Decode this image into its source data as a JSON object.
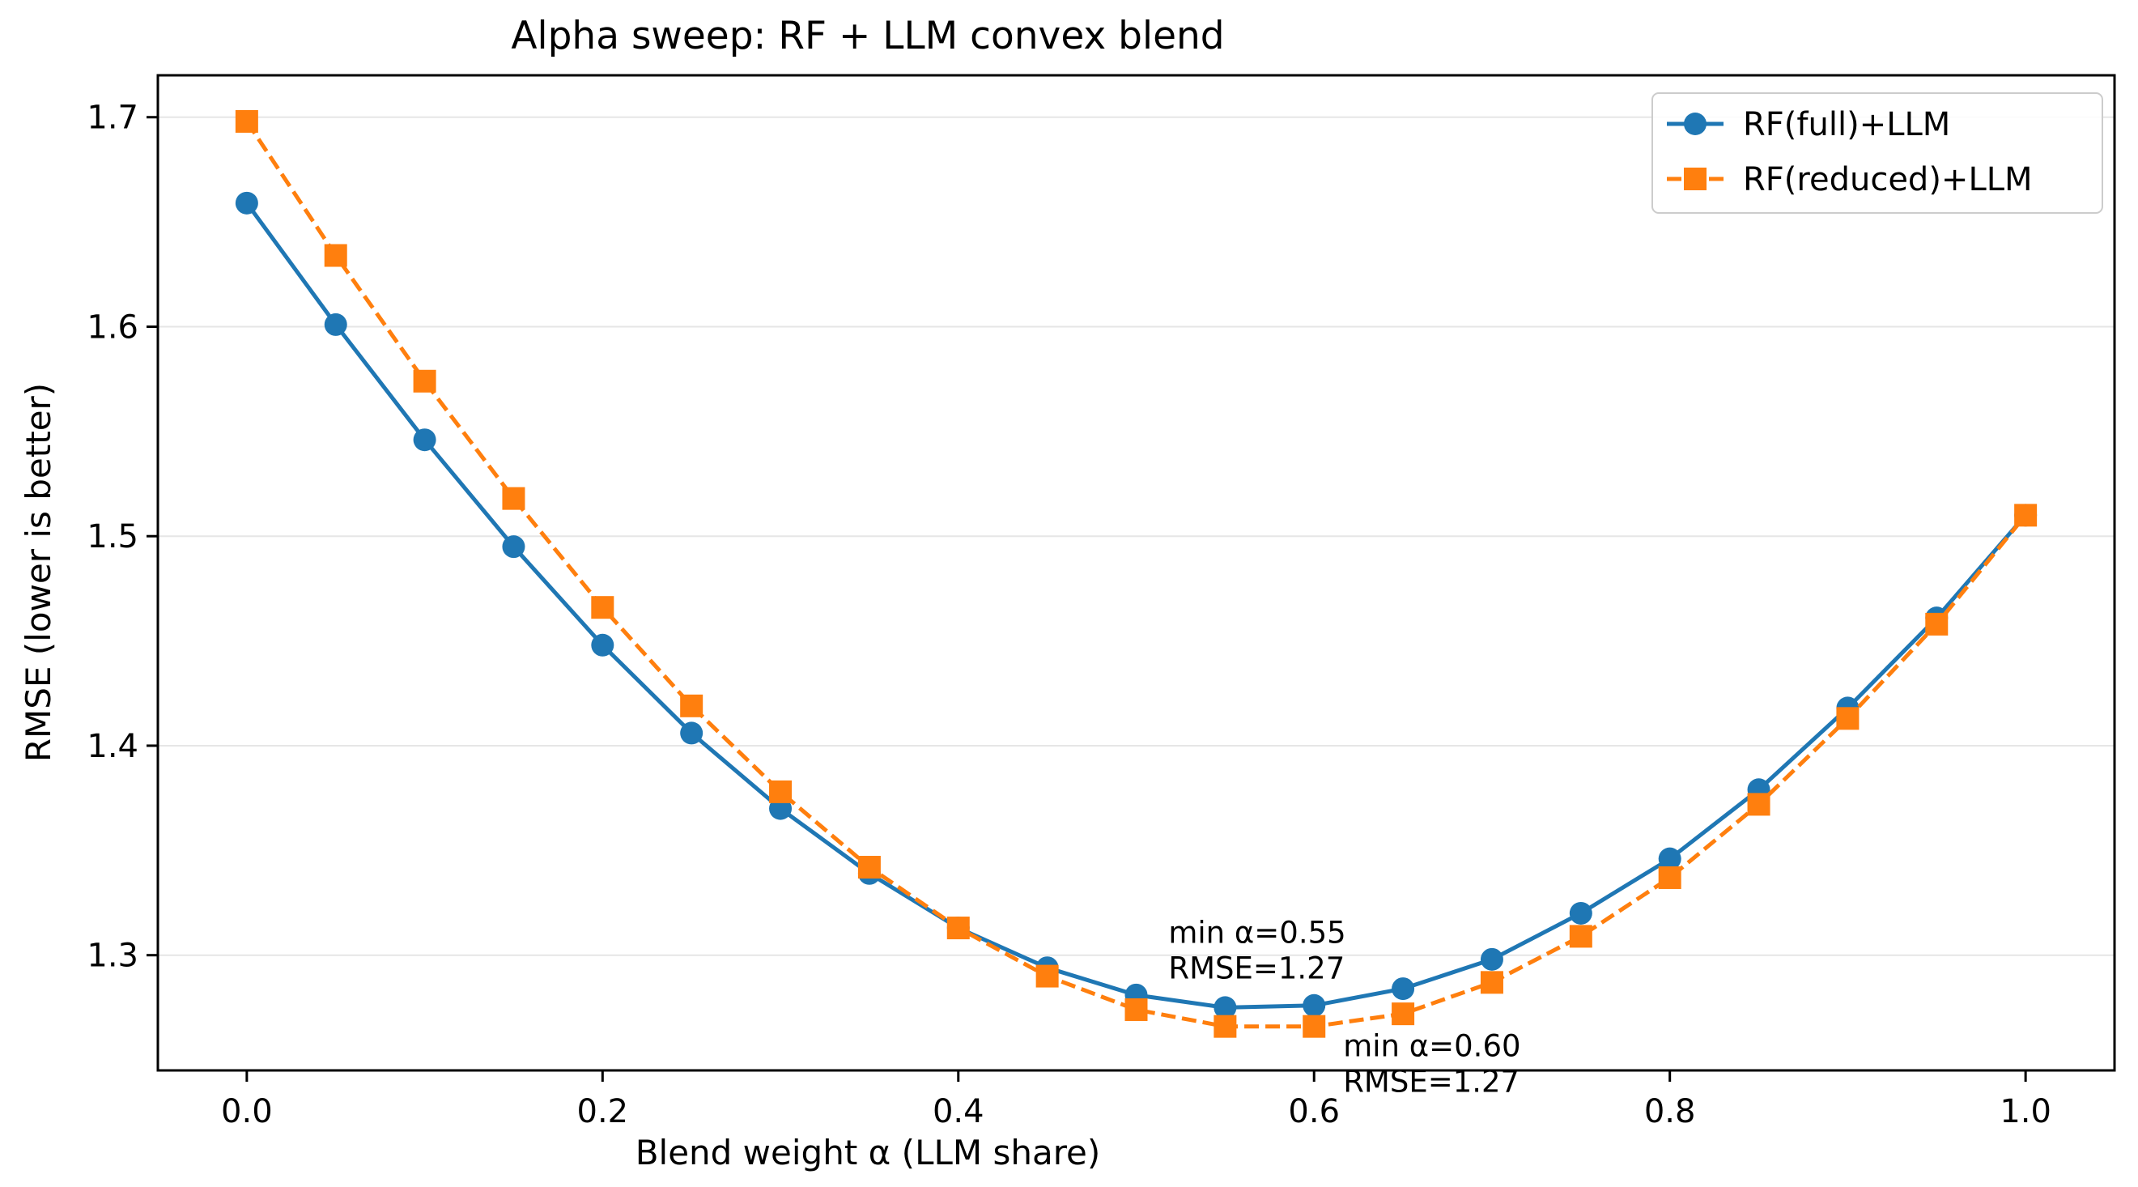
{
  "chart_data": {
    "type": "line",
    "title": "Alpha sweep: RF + LLM convex blend",
    "xlabel": "Blend weight α (LLM share)",
    "ylabel": "RMSE (lower is better)",
    "xlim": [
      -0.05,
      1.05
    ],
    "ylim": [
      1.245,
      1.72
    ],
    "x_ticks": [
      0.0,
      0.2,
      0.4,
      0.6,
      0.8,
      1.0
    ],
    "x_tick_labels": [
      "0.0",
      "0.2",
      "0.4",
      "0.6",
      "0.8",
      "1.0"
    ],
    "y_ticks": [
      1.3,
      1.4,
      1.5,
      1.6,
      1.7
    ],
    "y_tick_labels": [
      "1.3",
      "1.4",
      "1.5",
      "1.6",
      "1.7"
    ],
    "grid": "horizontal",
    "legend_position": "top-right",
    "x": [
      0.0,
      0.05,
      0.1,
      0.15,
      0.2,
      0.25,
      0.3,
      0.35,
      0.4,
      0.45,
      0.5,
      0.55,
      0.6,
      0.65,
      0.7,
      0.75,
      0.8,
      0.85,
      0.9,
      0.95,
      1.0
    ],
    "series": [
      {
        "name": "RF(full)+LLM",
        "color": "#1f77b4",
        "marker": "circle",
        "line_style": "solid",
        "values": [
          1.659,
          1.601,
          1.546,
          1.495,
          1.448,
          1.406,
          1.37,
          1.339,
          1.313,
          1.294,
          1.281,
          1.275,
          1.276,
          1.284,
          1.298,
          1.32,
          1.346,
          1.379,
          1.418,
          1.461,
          1.51
        ]
      },
      {
        "name": "RF(reduced)+LLM",
        "color": "#ff7f0e",
        "marker": "square",
        "line_style": "dashed",
        "values": [
          1.698,
          1.634,
          1.574,
          1.518,
          1.466,
          1.419,
          1.378,
          1.342,
          1.313,
          1.29,
          1.274,
          1.266,
          1.266,
          1.272,
          1.287,
          1.309,
          1.337,
          1.372,
          1.413,
          1.458,
          1.51
        ]
      }
    ],
    "annotations": [
      {
        "series": "RF(full)+LLM",
        "line1": "min α=0.55",
        "line2": "RMSE=1.27",
        "x": 0.55,
        "y": 1.275
      },
      {
        "series": "RF(reduced)+LLM",
        "line1": "min α=0.60",
        "line2": "RMSE=1.27",
        "x": 0.6,
        "y": 1.266
      }
    ]
  }
}
